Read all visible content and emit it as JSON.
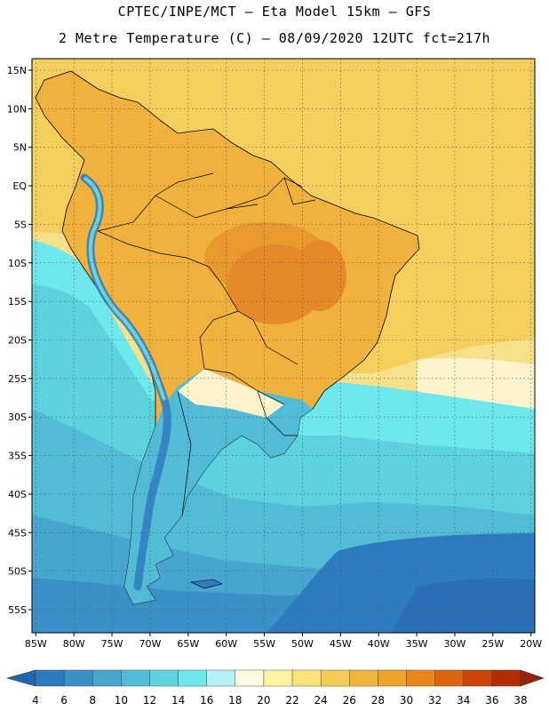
{
  "header": {
    "line1": "CPTEC/INPE/MCT –  Eta Model 15km – GFS",
    "line2": "2 Metre Temperature (C) – 08/09/2020 12UTC fct=217h"
  },
  "map": {
    "lat_labels": [
      "15N",
      "10N",
      "5N",
      "EQ",
      "5S",
      "10S",
      "15S",
      "20S",
      "25S",
      "30S",
      "35S",
      "40S",
      "45S",
      "50S",
      "55S"
    ],
    "lat_values": [
      15,
      10,
      5,
      0,
      -5,
      -10,
      -15,
      -20,
      -25,
      -30,
      -35,
      -40,
      -45,
      -50,
      -55
    ],
    "lon_labels": [
      "85W",
      "80W",
      "75W",
      "70W",
      "65W",
      "60W",
      "55W",
      "50W",
      "45W",
      "40W",
      "35W",
      "30W",
      "25W",
      "20W"
    ],
    "lon_values": [
      -85,
      -80,
      -75,
      -70,
      -65,
      -60,
      -55,
      -50,
      -45,
      -40,
      -35,
      -30,
      -25,
      -20
    ],
    "extent": {
      "lon_min": -85.5,
      "lon_max": -19.5,
      "lat_min": -58,
      "lat_max": 16.5
    }
  },
  "colorbar": {
    "levels": [
      "4",
      "6",
      "8",
      "10",
      "12",
      "14",
      "16",
      "18",
      "20",
      "22",
      "24",
      "26",
      "28",
      "30",
      "32",
      "34",
      "36",
      "38"
    ],
    "colors": [
      "#2166ac",
      "#2f7bbf",
      "#3c90c8",
      "#47a6cf",
      "#52bcd7",
      "#5dd2df",
      "#6ee8ec",
      "#b5f1f7",
      "#fdf8df",
      "#fdf3a3",
      "#f9e27a",
      "#f3cc55",
      "#f0b73c",
      "#eea32a",
      "#e8861a",
      "#de650f",
      "#cc4506",
      "#b42d02",
      "#99240b"
    ]
  }
}
